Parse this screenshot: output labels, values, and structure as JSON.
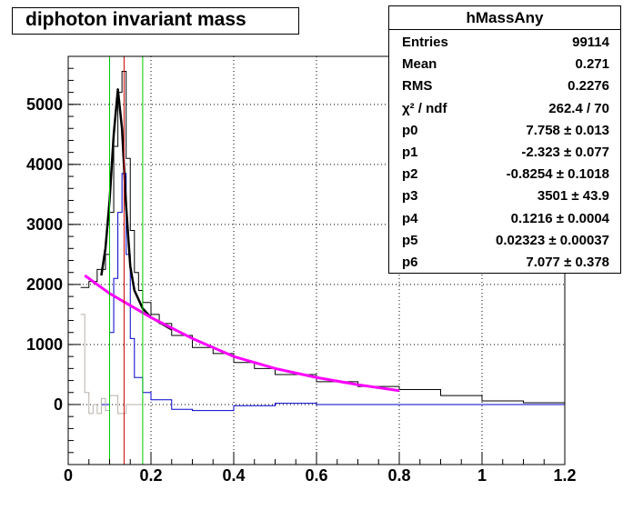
{
  "title": "diphoton invariant mass",
  "stats": {
    "name": "hMassAny",
    "rows": [
      {
        "key": "Entries",
        "value": "99114"
      },
      {
        "key": "Mean",
        "value": "0.271"
      },
      {
        "key": "RMS",
        "value": "0.2276"
      },
      {
        "key": "χ² / ndf",
        "value": "262.4 / 70"
      },
      {
        "key": "p0",
        "value": "7.758 ± 0.013"
      },
      {
        "key": "p1",
        "value": "-2.323 ± 0.077"
      },
      {
        "key": "p2",
        "value": "-0.8254 ± 0.1018"
      },
      {
        "key": "p3",
        "value": "3501 ± 43.9"
      },
      {
        "key": "p4",
        "value": "0.1216 ± 0.0004"
      },
      {
        "key": "p5",
        "value": "0.02323 ± 0.00037"
      },
      {
        "key": "p6",
        "value": "7.077 ± 0.378"
      }
    ]
  },
  "colors": {
    "total_hist": "#000000",
    "signal_hist": "#0000cc",
    "low_hist": "#b8b0a8",
    "fit": "#000000",
    "background_fit": "#ff00ff",
    "window_lines": "#00cc00",
    "peak_line": "#cc0000",
    "grid": "#000000"
  },
  "chart_data": {
    "type": "line",
    "title": "diphoton invariant mass",
    "xlabel": "",
    "ylabel": "",
    "xlim": [
      0,
      1.2
    ],
    "ylim": [
      -1000,
      5800
    ],
    "x_ticks": [
      "0",
      "0.2",
      "0.4",
      "0.6",
      "0.8",
      "1",
      "1.2"
    ],
    "y_ticks": [
      "0",
      "1000",
      "2000",
      "3000",
      "4000",
      "5000"
    ],
    "grid": true,
    "vertical_lines": [
      {
        "x": 0.1,
        "kind": "window"
      },
      {
        "x": 0.135,
        "kind": "peak"
      },
      {
        "x": 0.18,
        "kind": "window"
      }
    ],
    "series": [
      {
        "kind": "histogram",
        "role": "total",
        "x": [
          0.03,
          0.05,
          0.07,
          0.09,
          0.1,
          0.11,
          0.12,
          0.13,
          0.14,
          0.15,
          0.16,
          0.17,
          0.18,
          0.2,
          0.22,
          0.25,
          0.3,
          0.35,
          0.4,
          0.45,
          0.5,
          0.6,
          0.7,
          0.8,
          0.9,
          1.0,
          1.1,
          1.2
        ],
        "y": [
          1950,
          2050,
          2250,
          2500,
          3200,
          4300,
          5200,
          5550,
          4100,
          2900,
          2200,
          1900,
          1700,
          1500,
          1350,
          1150,
          950,
          850,
          700,
          600,
          500,
          380,
          300,
          250,
          150,
          60,
          30,
          20
        ]
      },
      {
        "kind": "histogram",
        "role": "signal",
        "x": [
          0.08,
          0.1,
          0.11,
          0.12,
          0.13,
          0.14,
          0.15,
          0.16,
          0.18,
          0.2,
          0.25,
          0.3,
          0.4,
          0.5,
          0.6,
          0.8,
          1.0,
          1.2
        ],
        "y": [
          0,
          1200,
          2100,
          3200,
          3850,
          2500,
          1100,
          450,
          200,
          80,
          -80,
          -100,
          -20,
          20,
          0,
          0,
          0,
          40
        ]
      },
      {
        "kind": "histogram",
        "role": "low-mass",
        "x": [
          0.03,
          0.04,
          0.05,
          0.06,
          0.07,
          0.08,
          0.09,
          0.1,
          0.12,
          0.14,
          0.16,
          0.18
        ],
        "y": [
          1500,
          200,
          -150,
          0,
          -150,
          100,
          -100,
          150,
          -150,
          0,
          0,
          100
        ]
      },
      {
        "kind": "curve",
        "role": "total fit",
        "x": [
          0.08,
          0.09,
          0.1,
          0.11,
          0.12,
          0.13,
          0.14,
          0.15,
          0.16,
          0.18,
          0.2,
          0.25
        ],
        "y": [
          2150,
          2600,
          3400,
          4500,
          5250,
          4600,
          3300,
          2300,
          1900,
          1600,
          1450,
          1250
        ]
      },
      {
        "kind": "curve",
        "role": "background fit",
        "x": [
          0.04,
          0.1,
          0.2,
          0.3,
          0.4,
          0.5,
          0.6,
          0.7,
          0.8
        ],
        "y": [
          2150,
          1850,
          1450,
          1100,
          800,
          600,
          450,
          330,
          230
        ]
      }
    ]
  }
}
